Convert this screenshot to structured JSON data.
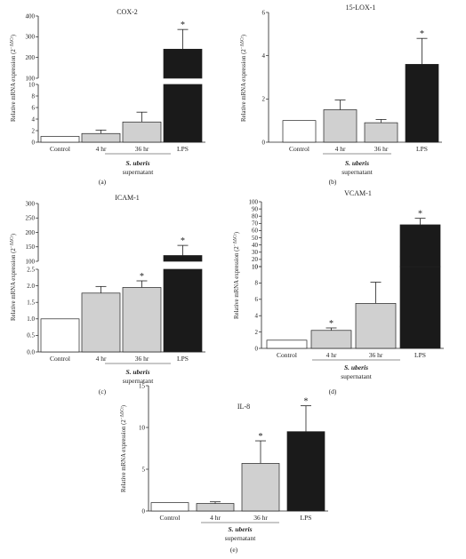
{
  "chart_data": [
    {
      "panel": "(a)",
      "type": "bar",
      "title": "COX-2",
      "ylabel": "Relative mRNA expression (2",
      "ylabel_sup": "−ΔΔCt",
      "ylabel_end": ")",
      "categories": [
        "Control",
        "4 hr",
        "36 hr",
        "LPS"
      ],
      "group_label_italic": "S. uberis",
      "group_label": "supernatant",
      "values": [
        1,
        1.5,
        3.5,
        240
      ],
      "errors": [
        0,
        0.6,
        1.7,
        95
      ],
      "significant": [
        false,
        false,
        false,
        true
      ],
      "fills": [
        "#ffffff",
        "#d0d0d0",
        "#d0d0d0",
        "#1a1a1a"
      ],
      "broken_axis": true,
      "lower_ylim": [
        0,
        10
      ],
      "lower_ticks": [
        0,
        2,
        4,
        6,
        8,
        10
      ],
      "upper_ylim": [
        100,
        400
      ],
      "upper_ticks": [
        100,
        200,
        300,
        400
      ]
    },
    {
      "panel": "(b)",
      "type": "bar",
      "title": "15-LOX-1",
      "ylabel": "Relative mRNA expression (2",
      "ylabel_sup": "−ΔΔCt",
      "ylabel_end": ")",
      "categories": [
        "Control",
        "4 hr",
        "36 hr",
        "LPS"
      ],
      "group_label_italic": "S. uberis",
      "group_label": "supernatant",
      "values": [
        1,
        1.5,
        0.9,
        3.6
      ],
      "errors": [
        0,
        0.45,
        0.15,
        1.2
      ],
      "significant": [
        false,
        false,
        false,
        true
      ],
      "fills": [
        "#ffffff",
        "#d0d0d0",
        "#d0d0d0",
        "#1a1a1a"
      ],
      "broken_axis": false,
      "ylim": [
        0,
        6
      ],
      "ticks": [
        0,
        2,
        4,
        6
      ]
    },
    {
      "panel": "(c)",
      "type": "bar",
      "title": "ICAM-1",
      "ylabel": "Relative mRNA expression (2",
      "ylabel_sup": "−ΔΔCt",
      "ylabel_end": ")",
      "categories": [
        "Control",
        "4 hr",
        "36 hr",
        "LPS"
      ],
      "group_label_italic": "S. uberis",
      "group_label": "supernatant",
      "values": [
        1,
        1.78,
        1.95,
        120
      ],
      "errors": [
        0,
        0.2,
        0.2,
        35
      ],
      "significant": [
        false,
        false,
        true,
        true
      ],
      "fills": [
        "#ffffff",
        "#d0d0d0",
        "#d0d0d0",
        "#1a1a1a"
      ],
      "broken_axis": true,
      "lower_ylim": [
        0,
        2.5
      ],
      "lower_ticks": [
        "0.0",
        "0.5",
        "1.0",
        "1.5",
        "2.0",
        "2.5"
      ],
      "upper_ylim": [
        100,
        300
      ],
      "upper_ticks": [
        100,
        150,
        200,
        250,
        300
      ]
    },
    {
      "panel": "(d)",
      "type": "bar",
      "title": "VCAM-1",
      "ylabel": "Relative mRNA expression (2",
      "ylabel_sup": "−ΔΔCt",
      "ylabel_end": ")",
      "categories": [
        "Control",
        "4 hr",
        "36 hr",
        "LPS"
      ],
      "group_label_italic": "S. uberis",
      "group_label": "supernatant",
      "values": [
        1,
        2.2,
        5.5,
        68
      ],
      "errors": [
        0,
        0.3,
        2.6,
        9
      ],
      "significant": [
        false,
        true,
        false,
        true
      ],
      "fills": [
        "#ffffff",
        "#d0d0d0",
        "#d0d0d0",
        "#1a1a1a"
      ],
      "broken_axis": true,
      "lower_ylim": [
        0,
        10
      ],
      "lower_ticks": [
        0,
        2,
        4,
        6,
        8,
        10
      ],
      "upper_ylim": [
        10,
        100
      ],
      "upper_ticks": [
        10,
        20,
        30,
        40,
        50,
        60,
        70,
        80,
        90,
        100
      ]
    },
    {
      "panel": "(e)",
      "type": "bar",
      "title": "IL-8",
      "ylabel": "Relative mRNA expression (2",
      "ylabel_sup": "−ΔΔCt",
      "ylabel_end": ")",
      "categories": [
        "Control",
        "4 hr",
        "36 hr",
        "LPS"
      ],
      "group_label_italic": "S. uberis",
      "group_label": "supernatant",
      "values": [
        1,
        0.9,
        5.7,
        9.5
      ],
      "errors": [
        0,
        0.2,
        2.7,
        3.1
      ],
      "significant": [
        false,
        false,
        true,
        true
      ],
      "fills": [
        "#ffffff",
        "#d0d0d0",
        "#d0d0d0",
        "#1a1a1a"
      ],
      "broken_axis": false,
      "ylim": [
        0,
        15
      ],
      "ticks": [
        0,
        5,
        10,
        15
      ]
    }
  ]
}
